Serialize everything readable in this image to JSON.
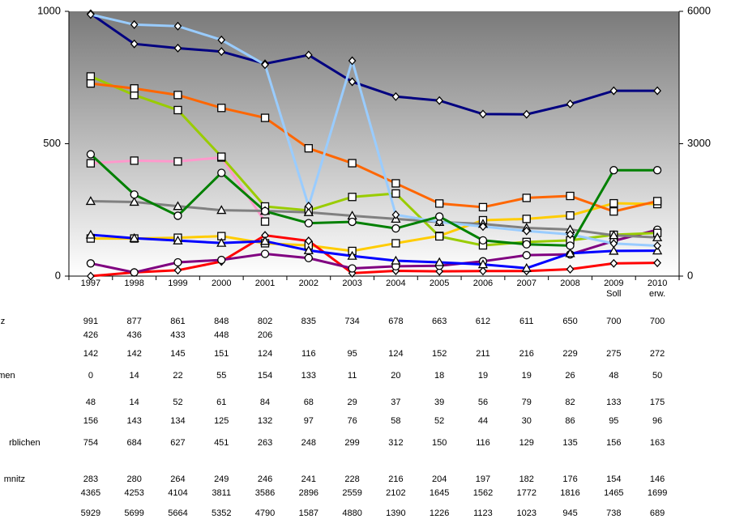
{
  "chart_data": {
    "type": "line",
    "categories": [
      "1997",
      "1998",
      "1999",
      "2000",
      "2001",
      "2002",
      "2003",
      "2004",
      "2005",
      "2006",
      "2007",
      "2008",
      "2009 Soll",
      "2010 erw."
    ],
    "ylim": [
      0,
      1000
    ],
    "yticks": [
      0,
      500,
      1000
    ],
    "y2lim": [
      0,
      6000
    ],
    "y2ticks": [
      0,
      3000,
      6000
    ],
    "series": [
      {
        "name": "z",
        "color": "#000080",
        "marker": "diamond",
        "values": [
          991,
          877,
          861,
          848,
          802,
          835,
          734,
          678,
          663,
          612,
          611,
          650,
          700,
          700
        ]
      },
      {
        "color": "#ff99cc",
        "marker": "square",
        "values": [
          426,
          436,
          433,
          448,
          206,
          null,
          null,
          null,
          null,
          null,
          null,
          null,
          null,
          null
        ]
      },
      {
        "color": "#ffcc00",
        "marker": "square",
        "values": [
          142,
          142,
          145,
          151,
          124,
          116,
          95,
          124,
          152,
          211,
          216,
          229,
          275,
          272
        ]
      },
      {
        "name": "men",
        "color": "#ff0000",
        "marker": "diamond",
        "values": [
          0,
          14,
          22,
          55,
          154,
          133,
          11,
          20,
          18,
          19,
          19,
          26,
          48,
          50
        ]
      },
      {
        "color": "#800080",
        "marker": "circle",
        "values": [
          48,
          14,
          52,
          61,
          84,
          68,
          29,
          37,
          39,
          56,
          79,
          82,
          133,
          175
        ]
      },
      {
        "color": "#0000ff",
        "marker": "triangle",
        "values": [
          156,
          143,
          134,
          125,
          132,
          97,
          76,
          58,
          52,
          44,
          30,
          86,
          95,
          96
        ]
      },
      {
        "name": "rblichen",
        "color": "#99cc00",
        "marker": "square",
        "values": [
          754,
          684,
          627,
          451,
          263,
          248,
          299,
          312,
          150,
          116,
          129,
          135,
          156,
          163
        ]
      },
      {
        "name": "mnitz",
        "color": "#808080",
        "marker": "triangle",
        "values": [
          283,
          280,
          264,
          249,
          246,
          241,
          228,
          216,
          204,
          197,
          182,
          176,
          154,
          146
        ]
      },
      {
        "color": "#ff6600",
        "marker": "square",
        "axis": "y2",
        "values": [
          4365,
          4253,
          4104,
          3811,
          3586,
          2896,
          2559,
          2102,
          1645,
          1562,
          1772,
          1816,
          1465,
          1699
        ]
      },
      {
        "color": "#99ccff",
        "marker": "diamond",
        "axis": "y2",
        "values": [
          5929,
          5699,
          5664,
          5352,
          4790,
          1587,
          4880,
          1390,
          1226,
          1123,
          1023,
          945,
          738,
          689
        ]
      },
      {
        "color": "#008000",
        "marker": "circle",
        "in_table": false,
        "values": [
          460,
          308,
          228,
          390,
          245,
          200,
          205,
          180,
          225,
          135,
          120,
          115,
          400,
          400
        ]
      }
    ]
  }
}
